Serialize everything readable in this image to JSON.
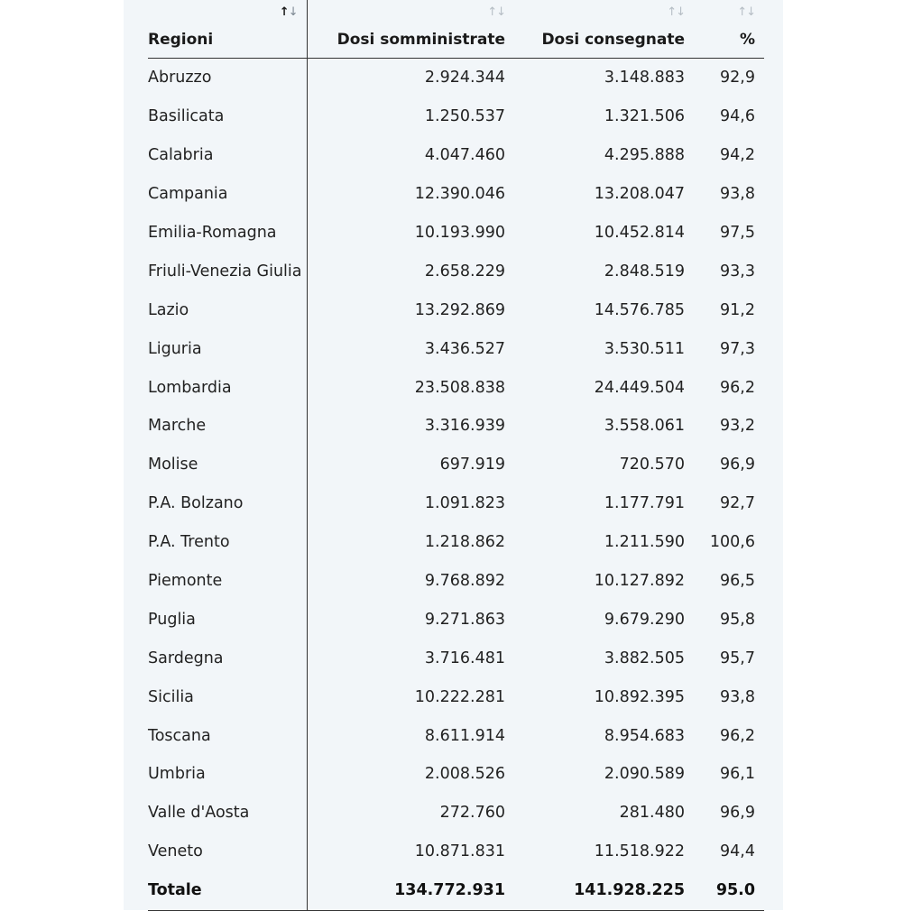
{
  "headers": {
    "regioni": "Regioni",
    "dosi_somministrate": "Dosi somministrate",
    "dosi_consegnate": "Dosi consegnate",
    "percent": "%",
    "sort_glyph_up": "↑",
    "sort_glyph_down": "↓"
  },
  "rows": [
    {
      "region": "Abruzzo",
      "administered": "2.924.344",
      "delivered": "3.148.883",
      "pct": "92,9"
    },
    {
      "region": "Basilicata",
      "administered": "1.250.537",
      "delivered": "1.321.506",
      "pct": "94,6"
    },
    {
      "region": "Calabria",
      "administered": "4.047.460",
      "delivered": "4.295.888",
      "pct": "94,2"
    },
    {
      "region": "Campania",
      "administered": "12.390.046",
      "delivered": "13.208.047",
      "pct": "93,8"
    },
    {
      "region": "Emilia-Romagna",
      "administered": "10.193.990",
      "delivered": "10.452.814",
      "pct": "97,5"
    },
    {
      "region": "Friuli-Venezia Giulia",
      "administered": "2.658.229",
      "delivered": "2.848.519",
      "pct": "93,3"
    },
    {
      "region": "Lazio",
      "administered": "13.292.869",
      "delivered": "14.576.785",
      "pct": "91,2"
    },
    {
      "region": "Liguria",
      "administered": "3.436.527",
      "delivered": "3.530.511",
      "pct": "97,3"
    },
    {
      "region": "Lombardia",
      "administered": "23.508.838",
      "delivered": "24.449.504",
      "pct": "96,2"
    },
    {
      "region": "Marche",
      "administered": "3.316.939",
      "delivered": "3.558.061",
      "pct": "93,2"
    },
    {
      "region": "Molise",
      "administered": "697.919",
      "delivered": "720.570",
      "pct": "96,9"
    },
    {
      "region": "P.A. Bolzano",
      "administered": "1.091.823",
      "delivered": "1.177.791",
      "pct": "92,7"
    },
    {
      "region": "P.A. Trento",
      "administered": "1.218.862",
      "delivered": "1.211.590",
      "pct": "100,6"
    },
    {
      "region": "Piemonte",
      "administered": "9.768.892",
      "delivered": "10.127.892",
      "pct": "96,5"
    },
    {
      "region": "Puglia",
      "administered": "9.271.863",
      "delivered": "9.679.290",
      "pct": "95,8"
    },
    {
      "region": "Sardegna",
      "administered": "3.716.481",
      "delivered": "3.882.505",
      "pct": "95,7"
    },
    {
      "region": "Sicilia",
      "administered": "10.222.281",
      "delivered": "10.892.395",
      "pct": "93,8"
    },
    {
      "region": "Toscana",
      "administered": "8.611.914",
      "delivered": "8.954.683",
      "pct": "96,2"
    },
    {
      "region": "Umbria",
      "administered": "2.008.526",
      "delivered": "2.090.589",
      "pct": "96,1"
    },
    {
      "region": "Valle d'Aosta",
      "administered": "272.760",
      "delivered": "281.480",
      "pct": "96,9"
    },
    {
      "region": "Veneto",
      "administered": "10.871.831",
      "delivered": "11.518.922",
      "pct": "94,4"
    }
  ],
  "total": {
    "label": "Totale",
    "administered": "134.772.931",
    "delivered": "141.928.225",
    "pct": "95.0"
  },
  "colors": {
    "panel_background": "#f2f6f9",
    "text": "#1a1a1a",
    "rule": "#333333",
    "sort_inactive": "#b5bdc4"
  }
}
